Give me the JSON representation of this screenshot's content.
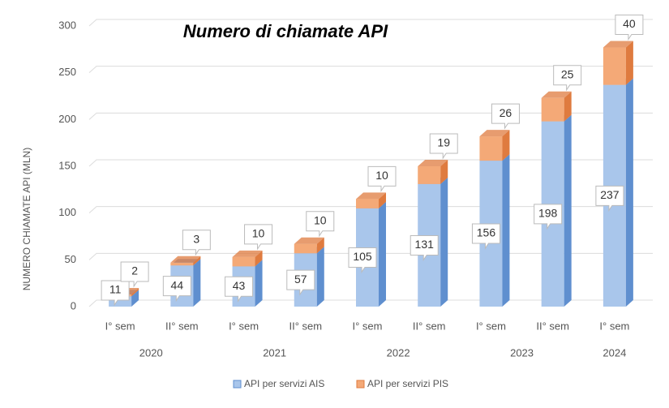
{
  "chart_data": {
    "type": "bar3d-stacked",
    "title": "Numero di chiamate API",
    "y_label": "NUMERO CHIAMATE API (MLN)",
    "categories": [
      "I° sem",
      "II° sem",
      "I° sem",
      "II° sem",
      "I° sem",
      "II° sem",
      "I° sem",
      "II° sem",
      "I° sem"
    ],
    "category_groups": [
      {
        "label": "2020",
        "count": 2
      },
      {
        "label": "2021",
        "count": 2
      },
      {
        "label": "2022",
        "count": 2
      },
      {
        "label": "2023",
        "count": 2
      },
      {
        "label": "2024",
        "count": 1
      }
    ],
    "series": [
      {
        "name": "API per servizi AIS",
        "color": "#a9c6eb",
        "side_color": "#5f8fcf",
        "values": [
          11,
          44,
          43,
          57,
          105,
          131,
          156,
          198,
          237
        ]
      },
      {
        "name": "API per servizi PIS",
        "color": "#f4a977",
        "side_color": "#df7b3f",
        "values": [
          2,
          3,
          10,
          10,
          10,
          19,
          26,
          25,
          40
        ]
      }
    ],
    "ylim": [
      0,
      300
    ],
    "yticks": [
      0,
      50,
      100,
      150,
      200,
      250,
      300
    ],
    "grid": true,
    "legend": "bottom"
  }
}
